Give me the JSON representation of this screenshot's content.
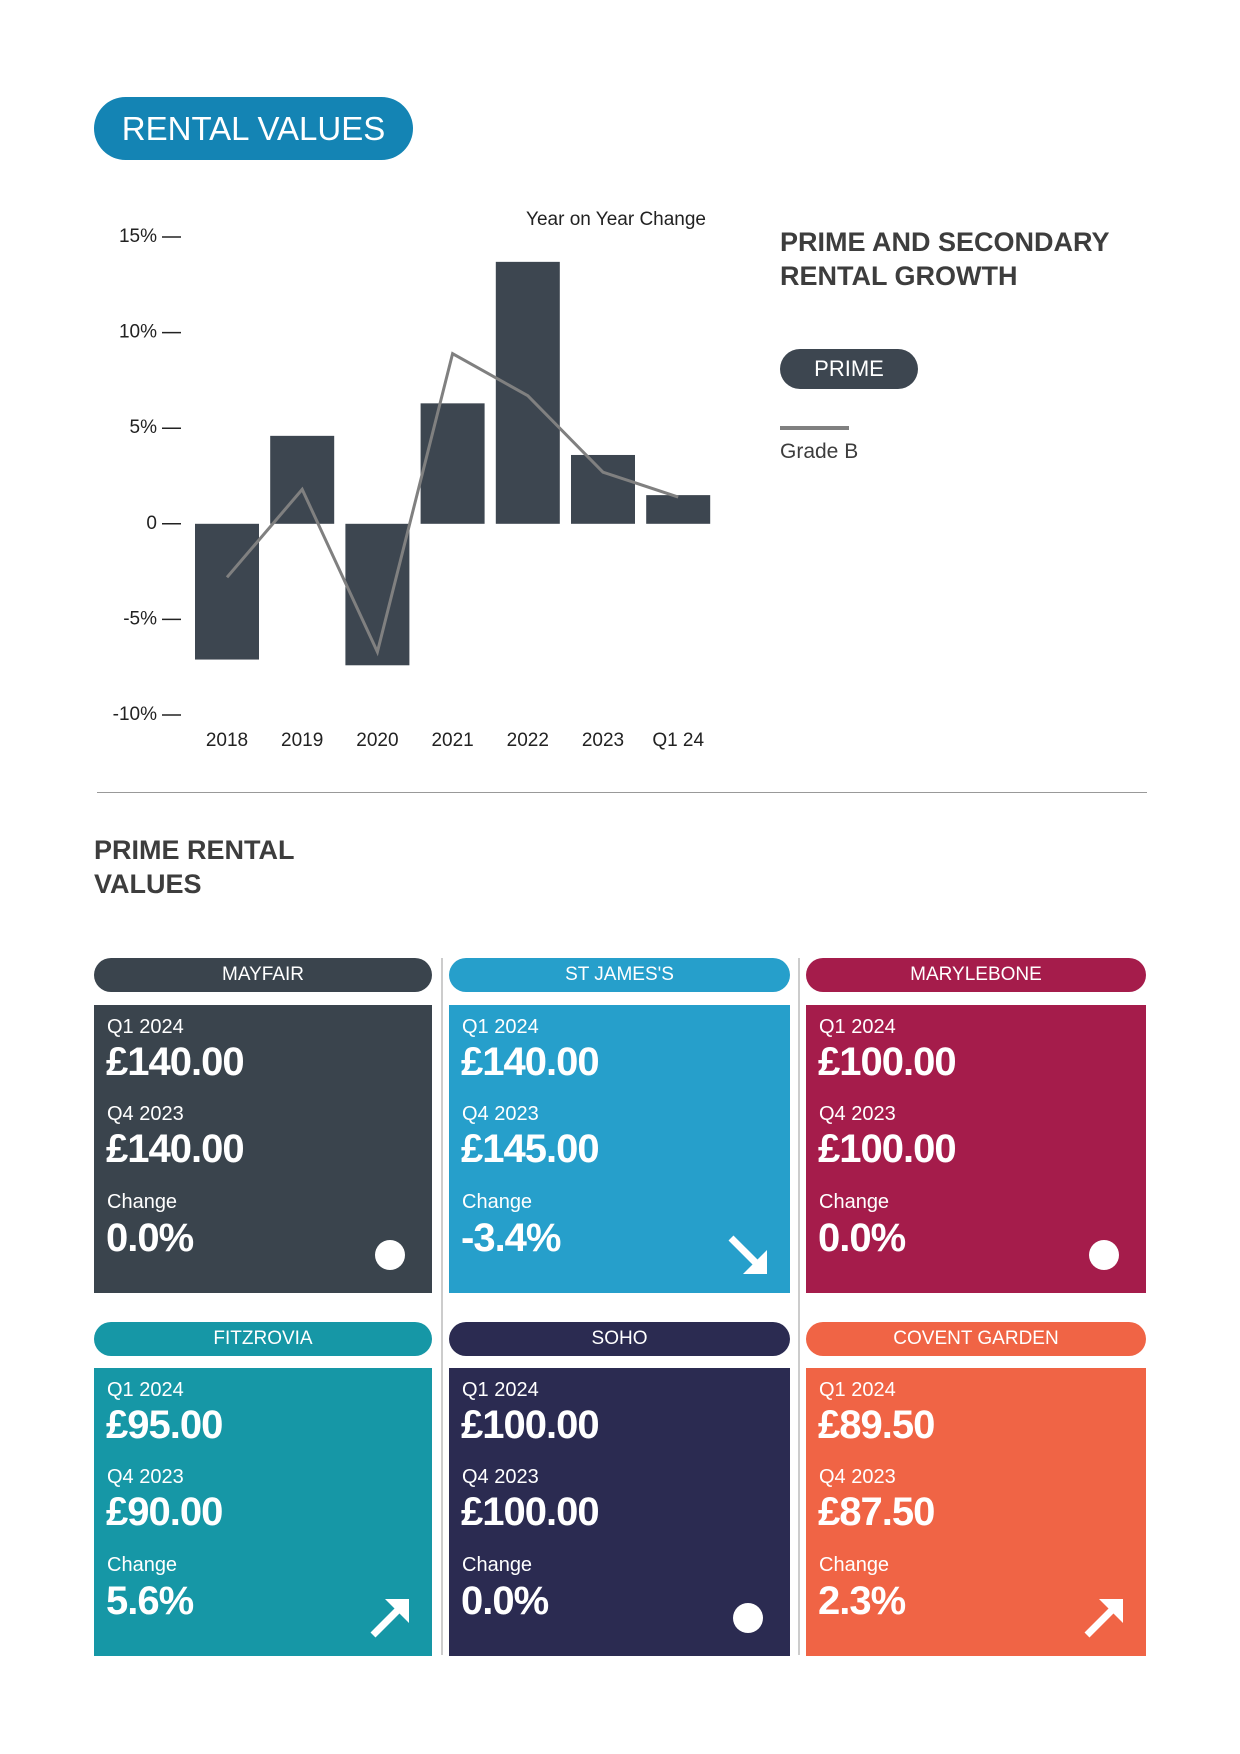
{
  "header": {
    "title": "RENTAL VALUES"
  },
  "chart_data": {
    "type": "bar",
    "annotation": "Year on Year Change",
    "legend_title": "PRIME AND SECONDARY RENTAL GROWTH",
    "categories": [
      "2018",
      "2019",
      "2020",
      "2021",
      "2022",
      "2023",
      "Q1 24"
    ],
    "series": [
      {
        "name": "PRIME",
        "type": "bar",
        "color": "#3d4650",
        "values": [
          -7.1,
          4.6,
          -7.4,
          6.3,
          13.7,
          3.6,
          1.5
        ]
      },
      {
        "name": "Grade B",
        "type": "line",
        "color": "#808080",
        "values": [
          -2.8,
          1.8,
          -6.7,
          8.9,
          6.7,
          2.7,
          1.4
        ]
      }
    ],
    "ylim": [
      -10,
      15
    ],
    "yticks": [
      {
        "value": 15,
        "label": "15%"
      },
      {
        "value": 10,
        "label": "10%"
      },
      {
        "value": 5,
        "label": "5%"
      },
      0,
      {
        "value": -5,
        "label": "-5%"
      },
      {
        "value": -10,
        "label": "-10%"
      }
    ]
  },
  "section": {
    "title": "PRIME RENTAL VALUES"
  },
  "cards": [
    {
      "name": "MAYFAIR",
      "color": "#3a444d",
      "q1_label": "Q1 2024",
      "q1_value": "£140.00",
      "q4_label": "Q4 2023",
      "q4_value": "£140.00",
      "change_label": "Change",
      "change_value": "0.0%"
    },
    {
      "name": "ST JAMES'S",
      "color": "#269fcb",
      "q1_label": "Q1 2024",
      "q1_value": "£140.00",
      "q4_label": "Q4 2023",
      "q4_value": "£145.00",
      "change_label": "Change",
      "change_value": "-3.4%"
    },
    {
      "name": "MARYLEBONE",
      "color": "#a51c4b",
      "q1_label": "Q1 2024",
      "q1_value": "£100.00",
      "q4_label": "Q4 2023",
      "q4_value": "£100.00",
      "change_label": "Change",
      "change_value": "0.0%"
    },
    {
      "name": "FITZROVIA",
      "color": "#1697a6",
      "q1_label": "Q1 2024",
      "q1_value": "£95.00",
      "q4_label": "Q4 2023",
      "q4_value": "£90.00",
      "change_label": "Change",
      "change_value": "5.6%"
    },
    {
      "name": "SOHO",
      "color": "#2b2b51",
      "q1_label": "Q1 2024",
      "q1_value": "£100.00",
      "q4_label": "Q4 2023",
      "q4_value": "£100.00",
      "change_label": "Change",
      "change_value": "0.0%"
    },
    {
      "name": "COVENT GARDEN",
      "color": "#f06445",
      "q1_label": "Q1 2024",
      "q1_value": "£89.50",
      "q4_label": "Q4 2023",
      "q4_value": "£87.50",
      "change_label": "Change",
      "change_value": "2.3%"
    }
  ]
}
